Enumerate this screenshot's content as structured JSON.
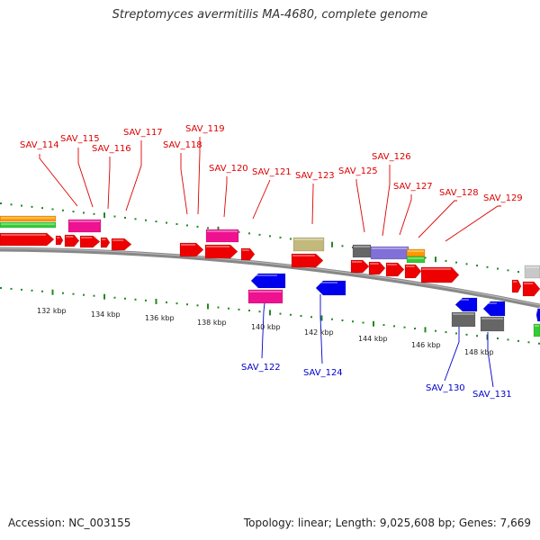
{
  "title": "Streptomyces avermitilis MA-4680, complete genome",
  "footer": {
    "accession": "Accession: NC_003155",
    "summary": "Topology: linear; Length: 9,025,608 bp; Genes: 7,669"
  },
  "colors": {
    "forward_label": "#dd0000",
    "reverse_label": "#0000cc",
    "gene_red": "#ee0000",
    "gene_blue": "#0000ee",
    "magenta": "#ee1190",
    "olive": "#c2b97a",
    "gray": "#666666",
    "purple": "#8070d8",
    "orange": "#ff9900",
    "green": "#33cc33",
    "light_gray": "#c8c8c8",
    "tick_green": "#228822",
    "backbone": "#888888"
  },
  "ruler_ticks": [
    {
      "label": "132 kbp"
    },
    {
      "label": "134 kbp"
    },
    {
      "label": "136 kbp"
    },
    {
      "label": "138 kbp"
    },
    {
      "label": "140 kbp"
    },
    {
      "label": "142 kbp"
    },
    {
      "label": "144 kbp"
    },
    {
      "label": "146 kbp"
    },
    {
      "label": "148 kbp"
    }
  ],
  "forward_labels": [
    {
      "name": "SAV_114"
    },
    {
      "name": "SAV_115"
    },
    {
      "name": "SAV_116"
    },
    {
      "name": "SAV_117"
    },
    {
      "name": "SAV_118"
    },
    {
      "name": "SAV_119"
    },
    {
      "name": "SAV_120"
    },
    {
      "name": "SAV_121"
    },
    {
      "name": "SAV_123"
    },
    {
      "name": "SAV_125"
    },
    {
      "name": "SAV_126"
    },
    {
      "name": "SAV_127"
    },
    {
      "name": "SAV_128"
    },
    {
      "name": "SAV_129"
    }
  ],
  "reverse_labels": [
    {
      "name": "SAV_122"
    },
    {
      "name": "SAV_124"
    },
    {
      "name": "SAV_130"
    },
    {
      "name": "SAV_131"
    }
  ]
}
